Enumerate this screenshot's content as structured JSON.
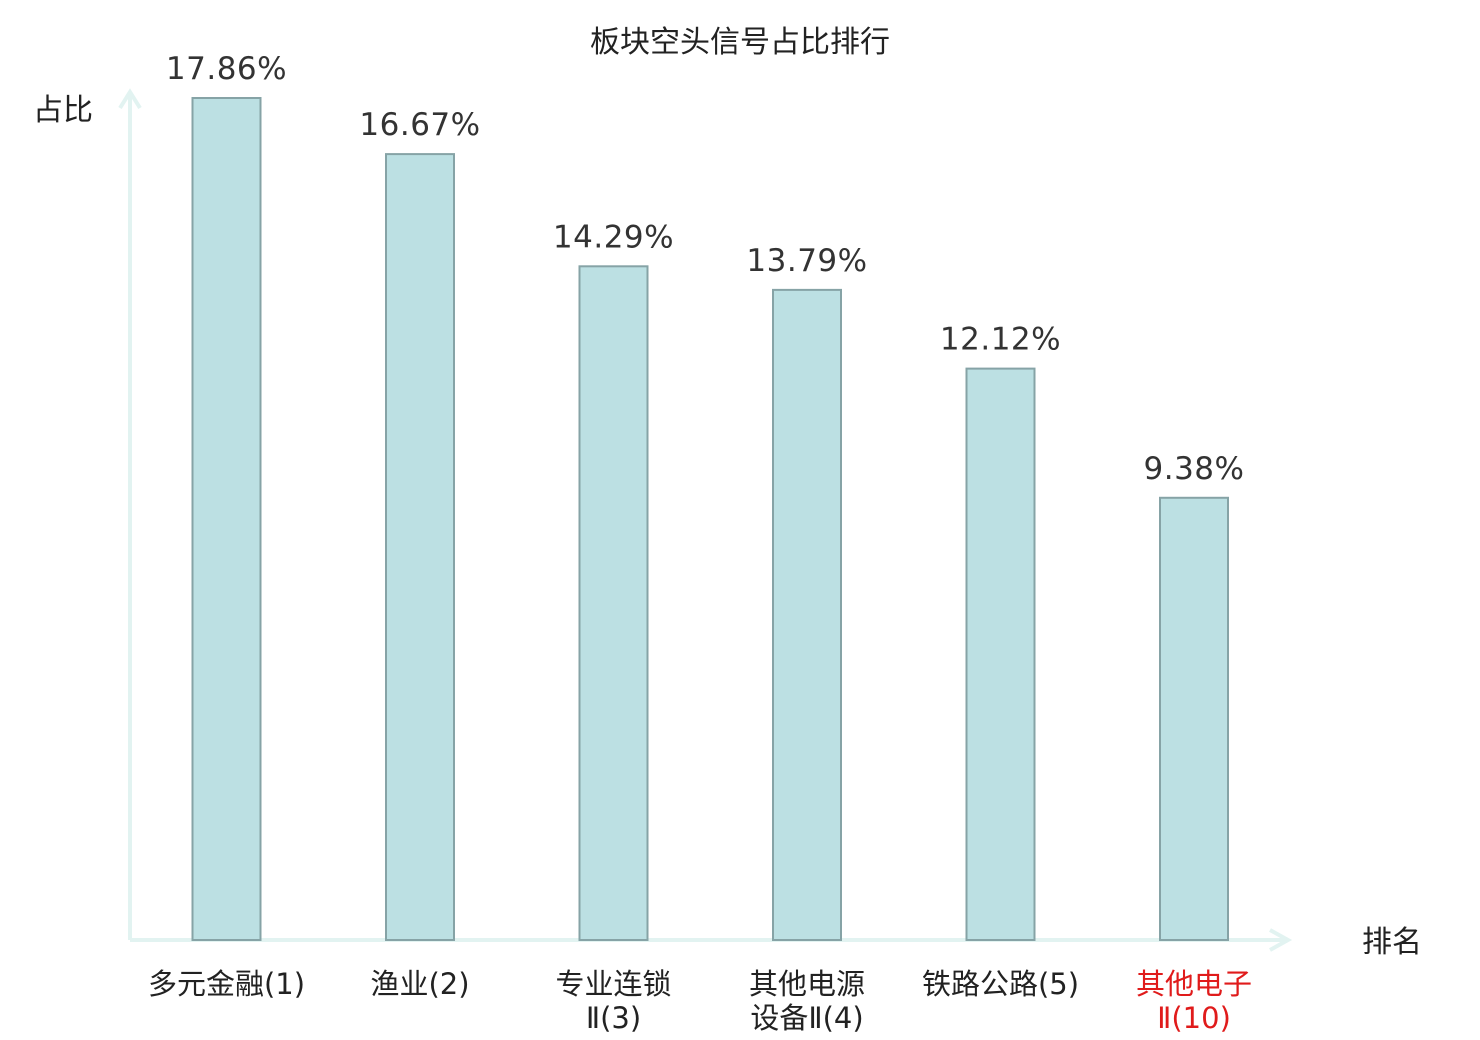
{
  "chart_data": {
    "type": "bar",
    "title": "板块空头信号占比排行",
    "ylabel": "占比",
    "xlabel": "排名",
    "unit": "%",
    "ylim": [
      0,
      17.86
    ],
    "grid": false,
    "legend": "none",
    "categories": [
      {
        "lines": [
          "多元金融(1)"
        ],
        "highlight": false
      },
      {
        "lines": [
          "渔业(2)"
        ],
        "highlight": false
      },
      {
        "lines": [
          "专业连锁",
          "Ⅱ(3)"
        ],
        "highlight": false
      },
      {
        "lines": [
          "其他电源",
          "设备Ⅱ(4)"
        ],
        "highlight": false
      },
      {
        "lines": [
          "铁路公路(5)"
        ],
        "highlight": false
      },
      {
        "lines": [
          "其他电子",
          "Ⅱ(10)"
        ],
        "highlight": true
      }
    ],
    "values": [
      17.86,
      16.67,
      14.29,
      13.79,
      12.12,
      9.38
    ],
    "value_labels": [
      "17.86%",
      "16.67%",
      "14.29%",
      "13.79%",
      "12.12%",
      "9.38%"
    ]
  },
  "colors": {
    "bar_fill": "#bce0e3",
    "bar_stroke": "#86a3a6",
    "axis": "#e2f3f1",
    "text": "#222222",
    "value_text": "#333333",
    "highlight": "#e01b1b"
  }
}
